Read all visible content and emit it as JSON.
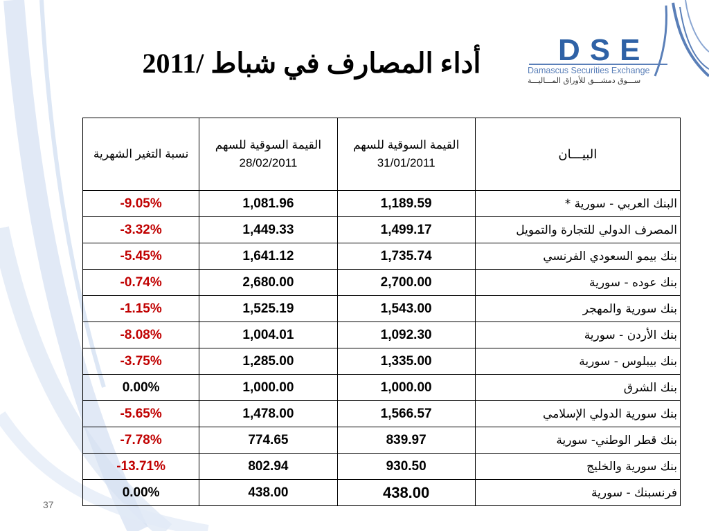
{
  "title": "أداء المصارف في شباط /2011",
  "logo": {
    "abbr": "DSE",
    "name_en": "Damascus Securities Exchange",
    "name_ar": "ســـوق دمشـــق للأوراق المـــاليـــة"
  },
  "table": {
    "headers": {
      "bank": "البيـــان",
      "value_jan_line1": "القيمة السوقية للسهم",
      "value_jan_line2": "31/01/2011",
      "value_feb_line1": "القيمة السوقية  للسهم",
      "value_feb_line2": "28/02/2011",
      "change": "نسبة التغير الشهرية"
    },
    "rows": [
      {
        "bank": "البنك العربي - سورية *",
        "jan": "1,189.59",
        "feb": "1,081.96",
        "change": "-9.05%"
      },
      {
        "bank": "المصرف الدولي للتجارة والتمويل",
        "jan": "1,499.17",
        "feb": "1,449.33",
        "change": "-3.32%"
      },
      {
        "bank": "بنك بيمو السعودي الفرنسي",
        "jan": "1,735.74",
        "feb": "1,641.12",
        "change": "-5.45%"
      },
      {
        "bank": "بنك عوده - سورية",
        "jan": "2,700.00",
        "feb": "2,680.00",
        "change": "-0.74%"
      },
      {
        "bank": "بنك سورية والمهجر",
        "jan": "1,543.00",
        "feb": "1,525.19",
        "change": "-1.15%"
      },
      {
        "bank": "بنك الأردن - سورية",
        "jan": "1,092.30",
        "feb": "1,004.01",
        "change": "-8.08%"
      },
      {
        "bank": "بنك بيبلوس - سورية",
        "jan": "1,335.00",
        "feb": "1,285.00",
        "change": "-3.75%"
      },
      {
        "bank": "بنك الشرق",
        "jan": "1,000.00",
        "feb": "1,000.00",
        "change": "0.00%"
      },
      {
        "bank": "بنك سورية الدولي الإسلامي",
        "jan": "1,566.57",
        "feb": "1,478.00",
        "change": "-5.65%"
      },
      {
        "bank": "بنك قطر الوطني- سورية",
        "jan": "839.97",
        "feb": "774.65",
        "change": "-7.78%"
      },
      {
        "bank": "بنك سورية والخليج",
        "jan": "930.50",
        "feb": "802.94",
        "change": "-13.71%"
      },
      {
        "bank": "فرنسبنك - سورية",
        "jan": "438.00",
        "feb": "438.00",
        "change": "0.00%"
      }
    ]
  },
  "page_number": "37",
  "colors": {
    "negative": "#c00000",
    "logo_blue": "#2f62a6",
    "swoosh": "#c9d7ee"
  }
}
